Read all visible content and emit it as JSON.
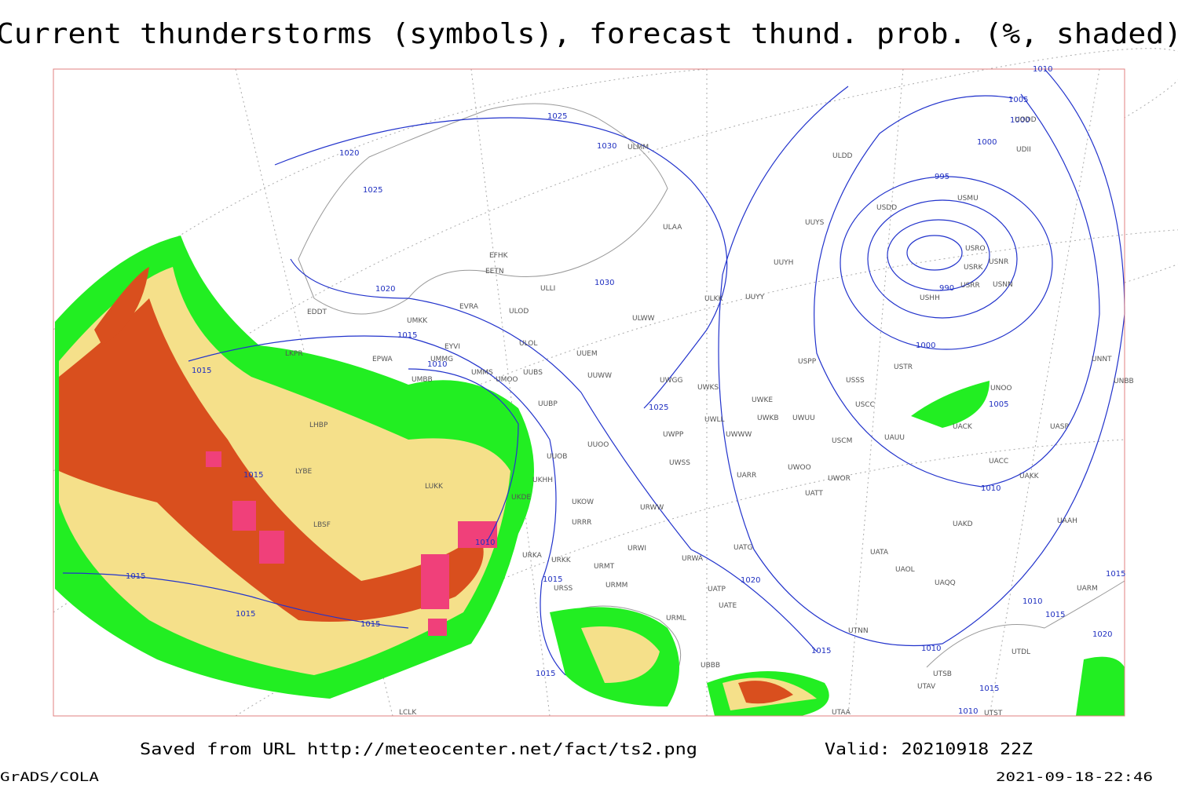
{
  "header": {
    "title": "Current thunderstorms (symbols), forecast thund. prob. (%, shaded)"
  },
  "footer": {
    "source": "Saved from URL http://meteocenter.net/fact/ts2.png",
    "valid": "Valid: 20210918 22Z",
    "software": "GrADS/COLA",
    "timestamp": "2021-09-18-22:46"
  },
  "isobars": [
    1025,
    1030,
    1020,
    1025,
    1030,
    1020,
    1015,
    1010,
    1015,
    1015,
    1015,
    1015,
    1015,
    1010,
    1015,
    1025,
    1020,
    1015,
    1010,
    1015,
    1010,
    1000,
    990,
    995,
    1000,
    1005,
    1005,
    1015,
    1010,
    1015,
    1020,
    1015,
    1010,
    1010,
    1000
  ],
  "stations": [
    "EFHK",
    "EETN",
    "EVRA",
    "ULLI",
    "ULOD",
    "ULOL",
    "EDDT",
    "UMKK",
    "EYVI",
    "EPWA",
    "UMMG",
    "LKPR",
    "UMBB",
    "UMMS",
    "UMOO",
    "UUBS",
    "LHBP",
    "UUBP",
    "UUOB",
    "UKHH",
    "UKDE",
    "UKOW",
    "URRR",
    "URKA",
    "URKK",
    "URMT",
    "URMM",
    "URSS",
    "LYBE",
    "LUKK",
    "LBSF",
    "ULAA",
    "ULMM",
    "ULWW",
    "UUEM",
    "UUWW",
    "UWGG",
    "UWKS",
    "UWKE",
    "UWKB",
    "UWLL",
    "UWWW",
    "UWPP",
    "UUOO",
    "UWSS",
    "URWW",
    "URWI",
    "URWA",
    "UATG",
    "UATP",
    "UATE",
    "URML",
    "ULKK",
    "UUYY",
    "UUYH",
    "UUYS",
    "ULDD",
    "USDD",
    "USMU",
    "USRO",
    "USRK",
    "USNR",
    "USRR",
    "USNN",
    "USHH",
    "USPP",
    "USTR",
    "USSS",
    "USCC",
    "UWUU",
    "USCM",
    "UAUU",
    "UACK",
    "UNOO",
    "UASP",
    "UNNT",
    "UNBB",
    "UACC",
    "UAKK",
    "UWOO",
    "UWOR",
    "UATT",
    "UARR",
    "UAKD",
    "UAAH",
    "UATA",
    "UAOL",
    "UAQQ",
    "UARM",
    "UTNN",
    "UTDL",
    "UTSB",
    "UTAV",
    "UTST",
    "UTAA",
    "UBBB",
    "LCLK",
    "UODD",
    "UDII"
  ]
}
